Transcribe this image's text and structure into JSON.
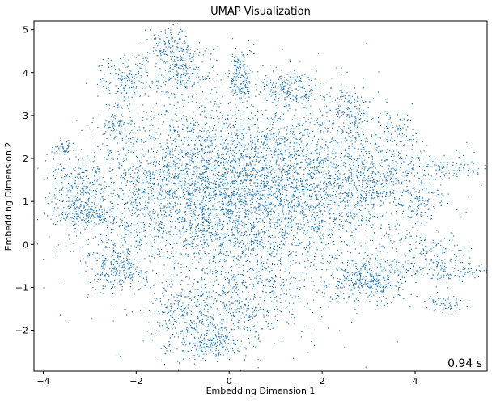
{
  "chart_data": {
    "type": "scatter",
    "title": "UMAP Visualization",
    "xlabel": "Embedding Dimension 1",
    "ylabel": "Embedding Dimension 2",
    "xlim": [
      -4.2,
      5.55
    ],
    "ylim": [
      -2.95,
      5.2
    ],
    "xticks": [
      -4,
      -2,
      0,
      2,
      4
    ],
    "yticks": [
      -2,
      -1,
      0,
      1,
      2,
      3,
      4,
      5
    ],
    "grid": false,
    "point_color": "#1f77b4",
    "annotation": "0.94 s",
    "series": [
      {
        "clusters": [
          {
            "cx": 0.3,
            "cy": 0.9,
            "sx": 1.6,
            "sy": 1.1,
            "n": 3600
          },
          {
            "cx": -1.0,
            "cy": 1.6,
            "sx": 0.9,
            "sy": 0.8,
            "n": 900
          },
          {
            "cx": 1.2,
            "cy": 1.8,
            "sx": 1.0,
            "sy": 0.8,
            "n": 800
          },
          {
            "cx": -1.3,
            "cy": 4.7,
            "sx": 0.25,
            "sy": 0.2,
            "n": 120
          },
          {
            "cx": -1.0,
            "cy": 4.0,
            "sx": 0.35,
            "sy": 0.35,
            "n": 250
          },
          {
            "cx": -2.2,
            "cy": 3.8,
            "sx": 0.3,
            "sy": 0.3,
            "n": 180
          },
          {
            "cx": 0.25,
            "cy": 3.9,
            "sx": 0.12,
            "sy": 0.35,
            "n": 180
          },
          {
            "cx": 1.3,
            "cy": 3.6,
            "sx": 0.35,
            "sy": 0.25,
            "n": 220
          },
          {
            "cx": 2.6,
            "cy": 3.1,
            "sx": 0.25,
            "sy": 0.3,
            "n": 180
          },
          {
            "cx": 3.6,
            "cy": 2.7,
            "sx": 0.2,
            "sy": 0.2,
            "n": 60
          },
          {
            "cx": -3.6,
            "cy": 2.25,
            "sx": 0.12,
            "sy": 0.06,
            "n": 40
          },
          {
            "cx": -3.2,
            "cy": 1.2,
            "sx": 0.35,
            "sy": 0.4,
            "n": 300
          },
          {
            "cx": -3.0,
            "cy": 0.7,
            "sx": 0.3,
            "sy": 0.15,
            "n": 150
          },
          {
            "cx": -2.4,
            "cy": 2.8,
            "sx": 0.15,
            "sy": 0.2,
            "n": 90
          },
          {
            "cx": -2.4,
            "cy": -0.5,
            "sx": 0.3,
            "sy": 0.3,
            "n": 250
          },
          {
            "cx": -0.8,
            "cy": -1.8,
            "sx": 0.5,
            "sy": 0.5,
            "n": 300
          },
          {
            "cx": 0.3,
            "cy": -1.5,
            "sx": 0.6,
            "sy": 0.5,
            "n": 350
          },
          {
            "cx": -0.4,
            "cy": -2.3,
            "sx": 0.3,
            "sy": 0.15,
            "n": 150
          },
          {
            "cx": 3.0,
            "cy": -0.9,
            "sx": 0.45,
            "sy": 0.25,
            "n": 350
          },
          {
            "cx": 4.2,
            "cy": -0.3,
            "sx": 0.5,
            "sy": 0.3,
            "n": 200
          },
          {
            "cx": 4.9,
            "cy": -0.6,
            "sx": 0.4,
            "sy": 0.1,
            "n": 80
          },
          {
            "cx": 4.6,
            "cy": -1.4,
            "sx": 0.2,
            "sy": 0.12,
            "n": 60
          },
          {
            "cx": 4.8,
            "cy": 1.8,
            "sx": 0.4,
            "sy": 0.15,
            "n": 100
          },
          {
            "cx": 4.2,
            "cy": 1.0,
            "sx": 0.3,
            "sy": 0.3,
            "n": 90
          },
          {
            "cx": 3.5,
            "cy": 1.6,
            "sx": 0.4,
            "sy": 0.5,
            "n": 250
          },
          {
            "cx": 2.8,
            "cy": 1.4,
            "sx": 0.5,
            "sy": 0.6,
            "n": 300
          }
        ]
      }
    ]
  }
}
